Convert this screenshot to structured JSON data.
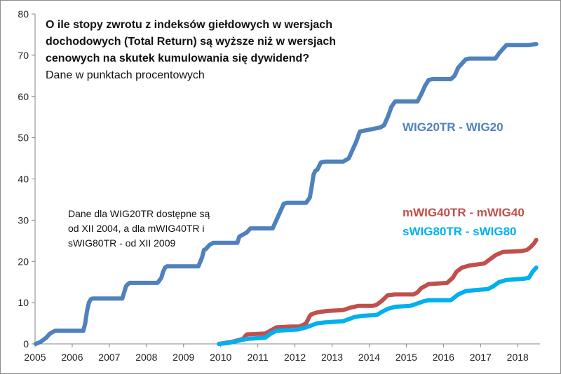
{
  "chart_data": {
    "type": "line",
    "title_lines": [
      "O ile stopy zwrotu z indeksów giełdowych w wersjach",
      "dochodowych  (Total Return) są wyższe niż w wersjach",
      "cenowych na skutek kumulowania się dywidend?"
    ],
    "subtitle": "Dane w punktach procentowych",
    "note_lines": [
      "Dane dla WIG20TR dostępne są",
      "od XII 2004, a dla mWIG40TR i",
      "sWIG80TR - od XII 2009"
    ],
    "xlim": [
      2005,
      2018.6
    ],
    "ylim": [
      0,
      80
    ],
    "x_ticks": [
      "2005",
      "2006",
      "2007",
      "2008",
      "2009",
      "2010",
      "2011",
      "2012",
      "2013",
      "2014",
      "2015",
      "2016",
      "2017",
      "2018"
    ],
    "y_ticks": [
      "0",
      "10",
      "20",
      "30",
      "40",
      "50",
      "60",
      "70",
      "80"
    ],
    "grid": false,
    "series": [
      {
        "name": "WIG20TR - WIG20",
        "color": "#4f81bd",
        "x": [
          2004.9,
          2005.15,
          2005.3,
          2005.4,
          2005.5,
          2005.55,
          2005.6,
          2006.3,
          2006.35,
          2006.4,
          2006.45,
          2006.5,
          2006.55,
          2006.6,
          2007.35,
          2007.4,
          2007.45,
          2007.5,
          2007.55,
          2007.6,
          2008.3,
          2008.4,
          2008.45,
          2008.5,
          2008.55,
          2009.4,
          2009.5,
          2009.55,
          2009.6,
          2009.7,
          2009.8,
          2010.45,
          2010.5,
          2010.7,
          2010.8,
          2011.4,
          2011.5,
          2011.6,
          2011.7,
          2011.8,
          2012.3,
          2012.4,
          2012.45,
          2012.5,
          2012.55,
          2012.6,
          2012.7,
          2012.8,
          2013.3,
          2013.45,
          2013.55,
          2013.65,
          2013.75,
          2014.2,
          2014.3,
          2014.4,
          2014.5,
          2014.6,
          2014.7,
          2015.3,
          2015.4,
          2015.5,
          2015.6,
          2015.7,
          2016.2,
          2016.3,
          2016.4,
          2016.5,
          2016.6,
          2016.7,
          2017.4,
          2017.5,
          2017.6,
          2017.7,
          2018.3,
          2018.5
        ],
        "y": [
          0,
          0.5,
          1.5,
          2.5,
          3,
          3.2,
          3.2,
          3.2,
          5,
          8,
          10,
          10.8,
          11,
          11,
          11,
          12.5,
          14,
          14.5,
          14.8,
          14.8,
          14.8,
          16,
          17.5,
          18.5,
          18.8,
          18.8,
          21,
          22.8,
          23,
          24,
          24.5,
          24.5,
          26,
          27,
          28,
          28,
          30,
          32,
          34,
          34.2,
          34.2,
          35.5,
          38,
          41,
          42,
          42.2,
          44,
          44.2,
          44.2,
          45,
          47,
          49,
          51.5,
          52.3,
          52.5,
          53,
          55,
          57.5,
          58.8,
          58.8,
          60.5,
          62.5,
          64,
          64.2,
          64.2,
          65,
          67,
          68,
          69,
          69.2,
          69.2,
          70.5,
          71.5,
          72.5,
          72.5,
          72.7
        ]
      },
      {
        "name": "mWIG40TR - mWIG40",
        "color": "#c0504d",
        "x": [
          2009.95,
          2010.3,
          2010.6,
          2010.7,
          2011.2,
          2011.4,
          2011.5,
          2011.9,
          2012.1,
          2012.2,
          2012.3,
          2012.4,
          2012.45,
          2012.55,
          2012.7,
          2012.9,
          2013.3,
          2013.5,
          2013.7,
          2014.1,
          2014.2,
          2014.35,
          2014.5,
          2014.7,
          2015.2,
          2015.3,
          2015.4,
          2015.6,
          2016.1,
          2016.25,
          2016.35,
          2016.5,
          2016.7,
          2017.1,
          2017.25,
          2017.4,
          2017.6,
          2018.1,
          2018.25,
          2018.35,
          2018.45,
          2018.5
        ],
        "y": [
          0,
          0.5,
          1.2,
          2.3,
          2.5,
          3.5,
          4,
          4.2,
          4.2,
          4.5,
          5,
          6.8,
          7.2,
          7.5,
          7.8,
          8,
          8.2,
          8.8,
          9.2,
          9.2,
          9.5,
          10.5,
          11.8,
          12,
          12,
          12.5,
          13.5,
          14.5,
          14.8,
          16,
          17.5,
          18.5,
          19,
          19.5,
          20.5,
          21.5,
          22.3,
          22.5,
          22.8,
          23.5,
          24.5,
          25.2
        ]
      },
      {
        "name": "sWIG80TR - sWIG80",
        "color": "#00b0f0",
        "x": [
          2009.95,
          2010.2,
          2010.5,
          2010.7,
          2011.2,
          2011.35,
          2011.5,
          2012.1,
          2012.3,
          2012.45,
          2012.6,
          2012.8,
          2013.3,
          2013.45,
          2013.6,
          2013.8,
          2014.2,
          2014.35,
          2014.5,
          2014.7,
          2015.1,
          2015.3,
          2015.45,
          2015.6,
          2016.2,
          2016.3,
          2016.4,
          2016.6,
          2016.8,
          2017.2,
          2017.35,
          2017.5,
          2017.7,
          2018.15,
          2018.3,
          2018.4,
          2018.5
        ],
        "y": [
          0,
          0.2,
          0.8,
          1.2,
          1.5,
          2.5,
          3.2,
          3.5,
          4,
          4.5,
          5,
          5.2,
          5.5,
          6,
          6.5,
          6.8,
          7,
          7.8,
          8.5,
          9,
          9.2,
          9.8,
          10.3,
          10.6,
          10.6,
          11.3,
          12,
          12.8,
          13,
          13.3,
          14,
          15,
          15.5,
          15.8,
          16,
          17.5,
          18.5
        ]
      }
    ],
    "series_labels": [
      "WIG20TR - WIG20",
      "mWIG40TR - mWIG40",
      "sWIG80TR - sWIG80"
    ]
  }
}
